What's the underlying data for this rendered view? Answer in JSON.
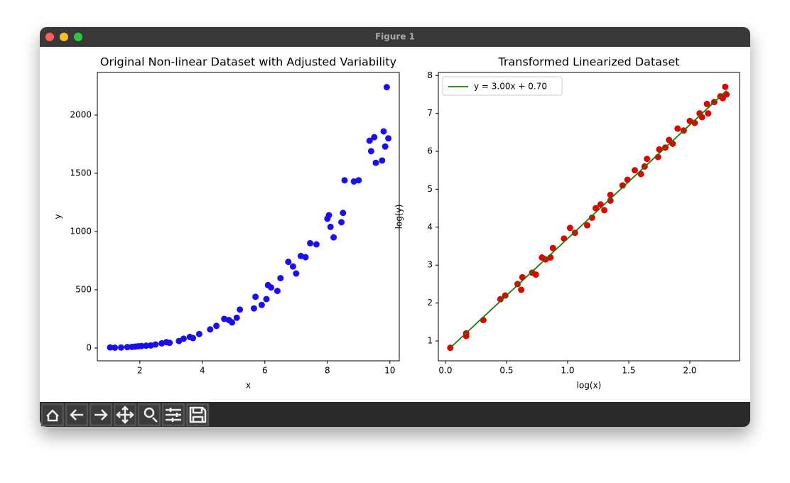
{
  "window": {
    "title": "Figure 1"
  },
  "chart_data": [
    {
      "type": "scatter",
      "title": "Original Non-linear Dataset with Adjusted Variability",
      "xlabel": "x",
      "ylabel": "y",
      "xlim": [
        0.64,
        10.3
      ],
      "ylim": [
        -110,
        2366
      ],
      "xticks": [
        2,
        4,
        6,
        8,
        10
      ],
      "yticks": [
        0,
        500,
        1000,
        1500,
        2000
      ],
      "series": [
        {
          "kind": "scatter",
          "color": "#1a0df5",
          "x": [
            1.05,
            1.2,
            1.4,
            1.6,
            1.75,
            1.85,
            1.95,
            2.05,
            2.2,
            2.35,
            2.5,
            2.7,
            2.85,
            2.95,
            3.25,
            3.4,
            3.6,
            3.7,
            3.9,
            4.25,
            4.45,
            4.7,
            4.85,
            4.95,
            5.1,
            5.2,
            5.65,
            5.7,
            5.9,
            6.05,
            6.1,
            6.2,
            6.4,
            6.5,
            6.75,
            6.9,
            7.0,
            7.15,
            7.3,
            7.45,
            7.65,
            8.0,
            8.05,
            8.1,
            8.2,
            8.45,
            8.5,
            8.55,
            8.85,
            9.0,
            9.35,
            9.4,
            9.5,
            9.55,
            9.75,
            9.8,
            9.85,
            9.9,
            9.95
          ],
          "values": [
            5,
            3,
            4,
            8,
            10,
            12,
            15,
            17,
            20,
            22,
            30,
            40,
            50,
            45,
            60,
            80,
            95,
            85,
            120,
            160,
            190,
            250,
            240,
            220,
            260,
            330,
            340,
            440,
            370,
            420,
            540,
            520,
            490,
            600,
            740,
            700,
            640,
            790,
            780,
            900,
            890,
            1110,
            1140,
            1040,
            950,
            1080,
            1160,
            1440,
            1430,
            1440,
            1780,
            1690,
            1810,
            1590,
            1610,
            1860,
            1730,
            2240,
            1800
          ]
        }
      ]
    },
    {
      "type": "scatter",
      "title": "Transformed Linearized Dataset",
      "xlabel": "log(x)",
      "ylabel": "log(y)",
      "xlim": [
        -0.058,
        2.407
      ],
      "ylim": [
        0.476,
        8.08
      ],
      "xticks": [
        {
          "value": 0,
          "label": "0.0"
        },
        0.5,
        {
          "value": 1,
          "label": "1.0"
        },
        1.5,
        {
          "value": 2,
          "label": "2.0"
        }
      ],
      "yticks": [
        1,
        2,
        3,
        4,
        5,
        6,
        7,
        8
      ],
      "legend": "upper left",
      "series": [
        {
          "kind": "scatter",
          "color": "#e00000",
          "x": [
            0.04,
            0.17,
            0.17,
            0.31,
            0.45,
            0.49,
            0.59,
            0.62,
            0.63,
            0.71,
            0.74,
            0.79,
            0.82,
            0.86,
            0.88,
            0.97,
            1.02,
            1.06,
            1.16,
            1.2,
            1.23,
            1.27,
            1.3,
            1.35,
            1.35,
            1.45,
            1.49,
            1.55,
            1.6,
            1.63,
            1.65,
            1.74,
            1.75,
            1.8,
            1.83,
            1.86,
            1.9,
            1.95,
            2.0,
            2.04,
            2.08,
            2.1,
            2.14,
            2.15,
            2.2,
            2.25,
            2.27,
            2.29,
            2.3
          ],
          "values": [
            0.82,
            1.2,
            1.13,
            1.55,
            2.1,
            2.2,
            2.5,
            2.35,
            2.68,
            2.8,
            2.75,
            3.2,
            3.15,
            3.2,
            3.45,
            3.7,
            3.98,
            3.85,
            4.05,
            4.25,
            4.5,
            4.6,
            4.45,
            4.85,
            4.7,
            5.1,
            5.25,
            5.5,
            5.4,
            5.6,
            5.8,
            5.85,
            6.05,
            6.1,
            6.3,
            6.2,
            6.6,
            6.55,
            6.8,
            6.75,
            7.0,
            6.9,
            7.25,
            7.0,
            7.3,
            7.45,
            7.4,
            7.7,
            7.5
          ]
        },
        {
          "kind": "line",
          "name": "y = 3.00x + 0.70",
          "color": "#1a7a00",
          "x": [
            0.04,
            2.3
          ],
          "values": [
            0.82,
            7.6
          ]
        }
      ]
    }
  ]
}
